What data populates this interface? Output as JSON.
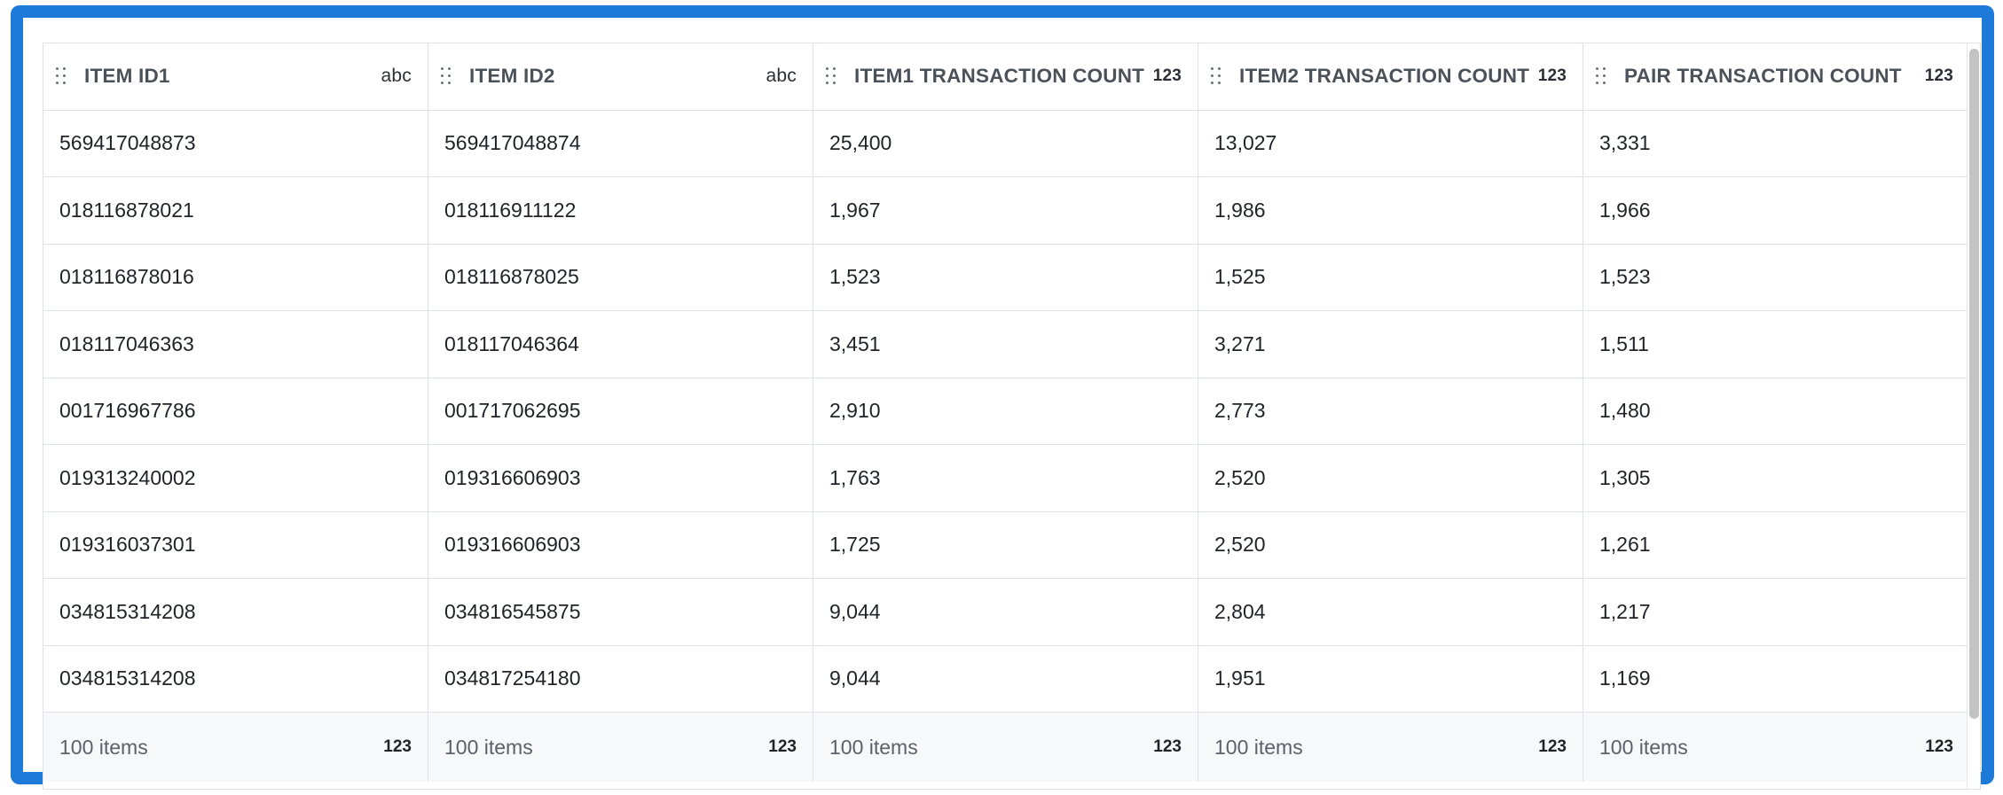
{
  "columns": [
    {
      "label": "ITEM ID1",
      "type_icon": "abc"
    },
    {
      "label": "ITEM ID2",
      "type_icon": "abc"
    },
    {
      "label": "ITEM1 TRANSACTION COUNT",
      "type_icon": "123"
    },
    {
      "label": "ITEM2 TRANSACTION COUNT",
      "type_icon": "123"
    },
    {
      "label": "PAIR TRANSACTION COUNT",
      "type_icon": "123"
    }
  ],
  "rows": [
    [
      "569417048873",
      "569417048874",
      "25,400",
      "13,027",
      "3,331"
    ],
    [
      "018116878021",
      "018116911122",
      "1,967",
      "1,986",
      "1,966"
    ],
    [
      "018116878016",
      "018116878025",
      "1,523",
      "1,525",
      "1,523"
    ],
    [
      "018117046363",
      "018117046364",
      "3,451",
      "3,271",
      "1,511"
    ],
    [
      "001716967786",
      "001717062695",
      "2,910",
      "2,773",
      "1,480"
    ],
    [
      "019313240002",
      "019316606903",
      "1,763",
      "2,520",
      "1,305"
    ],
    [
      "019316037301",
      "019316606903",
      "1,725",
      "2,520",
      "1,261"
    ],
    [
      "034815314208",
      "034816545875",
      "9,044",
      "2,804",
      "1,217"
    ],
    [
      "034815314208",
      "034817254180",
      "9,044",
      "1,951",
      "1,169"
    ]
  ],
  "footer": [
    {
      "count_label": "100 items",
      "type_icon": "123"
    },
    {
      "count_label": "100 items",
      "type_icon": "123"
    },
    {
      "count_label": "100 items",
      "type_icon": "123"
    },
    {
      "count_label": "100 items",
      "type_icon": "123"
    },
    {
      "count_label": "100 items",
      "type_icon": "123"
    }
  ],
  "colors": {
    "frame_border": "#1e7ad8",
    "grid_line": "#dfe3e8",
    "footer_bg": "#f7f8fa",
    "scroll_thumb": "#c3c3c6"
  },
  "icons": {
    "drag_handle": "drag-handle-icon"
  }
}
